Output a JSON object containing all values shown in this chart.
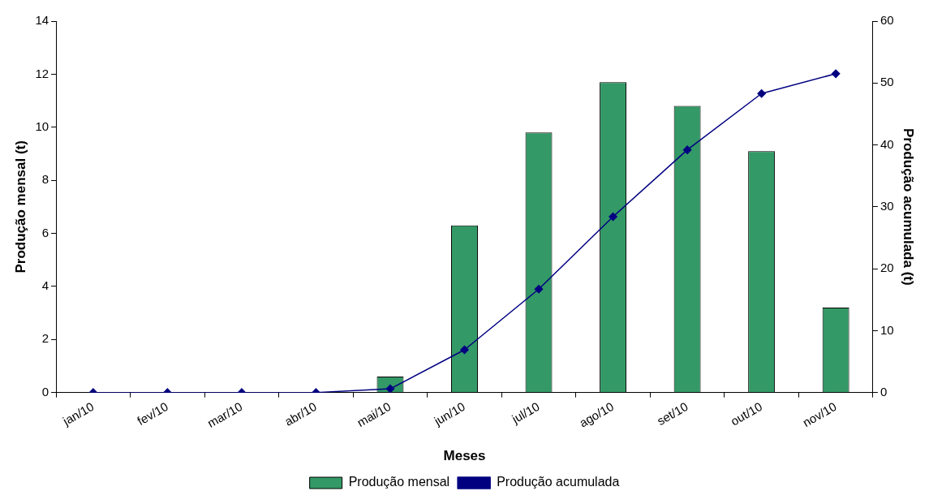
{
  "chart_data": {
    "type": "bar",
    "xlabel": "Meses",
    "ylabel": "Produção mensal (t)",
    "y2label": "Produção acumulada (t)",
    "categories": [
      "jan/10",
      "fev/10",
      "mar/10",
      "abr/10",
      "mai/10",
      "jun/10",
      "jul/10",
      "ago/10",
      "set/10",
      "out/10",
      "nov/10"
    ],
    "series": [
      {
        "name": "Produção mensal",
        "color": "#339966",
        "values": [
          0,
          0,
          0,
          0,
          0.6,
          6.3,
          9.8,
          11.7,
          10.8,
          9.1,
          3.2
        ]
      },
      {
        "name": "Produção acumulada",
        "type": "line",
        "axis": "y2",
        "color": "#000080",
        "values": [
          0,
          0,
          0,
          0,
          0.6,
          6.9,
          16.7,
          28.4,
          39.2,
          48.3,
          51.5
        ]
      }
    ],
    "ylim": [
      0,
      14
    ],
    "yticks": [
      0,
      2,
      4,
      6,
      8,
      10,
      12,
      14
    ],
    "y2lim": [
      0,
      60
    ],
    "y2ticks": [
      0,
      10,
      20,
      30,
      40,
      50,
      60
    ],
    "grid": false,
    "legend": "bottom",
    "marker": "diamond"
  }
}
